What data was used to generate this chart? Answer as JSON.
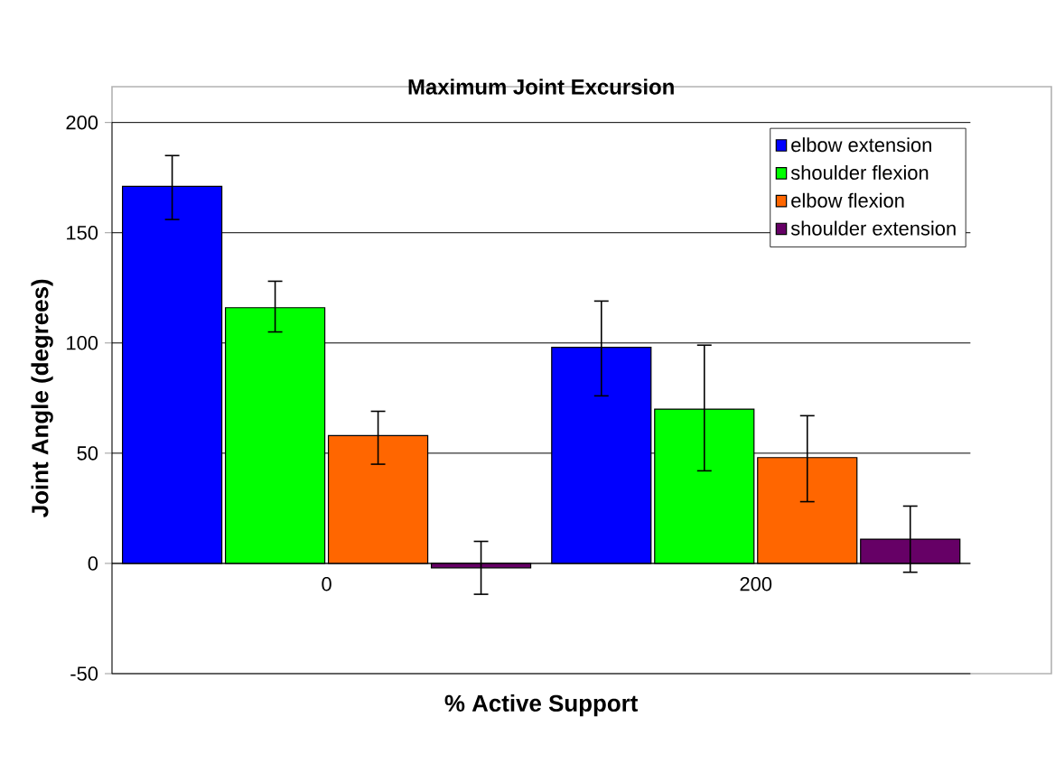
{
  "chart_data": {
    "type": "bar",
    "title": "Maximum Joint Excursion",
    "xlabel": "% Active Support",
    "ylabel": "Joint Angle (degrees)",
    "categories": [
      "0",
      "200"
    ],
    "series": [
      {
        "name": "elbow extension",
        "color": "#0000ff",
        "values": [
          171,
          98
        ],
        "errors": [
          [
            156,
            185
          ],
          [
            76,
            119
          ]
        ]
      },
      {
        "name": "shoulder flexion",
        "color": "#00ff00",
        "values": [
          116,
          70
        ],
        "errors": [
          [
            105,
            128
          ],
          [
            42,
            99
          ]
        ]
      },
      {
        "name": "elbow flexion",
        "color": "#ff6600",
        "values": [
          58,
          48
        ],
        "errors": [
          [
            45,
            69
          ],
          [
            28,
            67
          ]
        ]
      },
      {
        "name": "shoulder extension",
        "color": "#660066",
        "values": [
          -2,
          11
        ],
        "errors": [
          [
            -14,
            10
          ],
          [
            -4,
            26
          ]
        ]
      }
    ],
    "ylim": [
      -50,
      200
    ],
    "yticks": [
      -50,
      0,
      50,
      100,
      150,
      200
    ],
    "grid": "y",
    "legend": "top right"
  }
}
